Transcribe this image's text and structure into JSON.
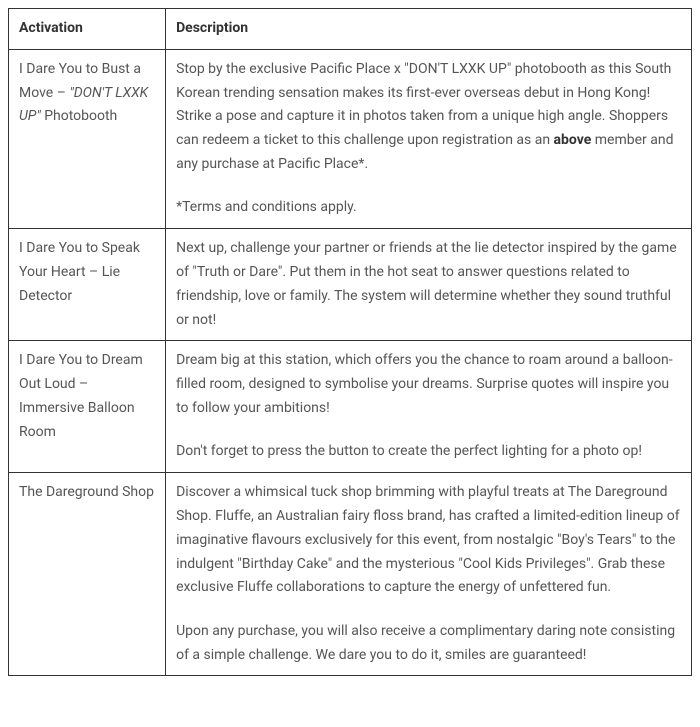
{
  "table": {
    "headers": {
      "activation": "Activation",
      "description": "Description"
    },
    "rows": [
      {
        "activation": {
          "prefix": "I Dare You to Bust a Move – ",
          "italic": "\"DON'T LXXK UP\"",
          "suffix": " Photobooth"
        },
        "description": {
          "p1a": "Stop by the exclusive Pacific Place x \"DON'T LXXK UP\" photobooth as this South Korean trending sensation makes its first-ever overseas debut in Hong Kong! Strike a pose and capture it in photos taken from a unique high angle. Shoppers can redeem a ticket to this challenge upon registration as an ",
          "p1bold": "above",
          "p1b": " member and any purchase at Pacific Place*.",
          "p2": "*Terms and conditions apply."
        }
      },
      {
        "activation": {
          "text": "I Dare You to Speak Your Heart – Lie Detector"
        },
        "description": {
          "p1": "Next up, challenge your partner or friends at the lie detector inspired by the game of \"Truth or Dare\". Put them in the hot seat to answer questions related to friendship, love or family. The system will determine whether they sound truthful or not!"
        }
      },
      {
        "activation": {
          "text": "I Dare You to Dream Out Loud – Immersive Balloon Room"
        },
        "description": {
          "p1": "Dream big at this station, which offers you the chance to roam around a balloon-filled room, designed to symbolise your dreams. Surprise quotes will inspire you to follow your ambitions!",
          "p2": "Don't forget to press the button to create the perfect lighting for a photo op!"
        }
      },
      {
        "activation": {
          "text": "The Dareground Shop"
        },
        "description": {
          "p1": "Discover a whimsical tuck shop brimming with playful treats at The Dareground Shop. Fluffe, an Australian fairy floss brand, has crafted a limited-edition lineup of imaginative flavours exclusively for this event, from nostalgic \"Boy's Tears\" to the indulgent \"Birthday Cake\" and the mysterious \"Cool Kids Privileges\". Grab these exclusive Fluffe collaborations to capture the energy of unfettered fun.",
          "p2": "Upon any purchase, you will also receive a complimentary daring note consisting of a simple challenge. We dare you to do it, smiles are guaranteed!"
        }
      }
    ]
  }
}
